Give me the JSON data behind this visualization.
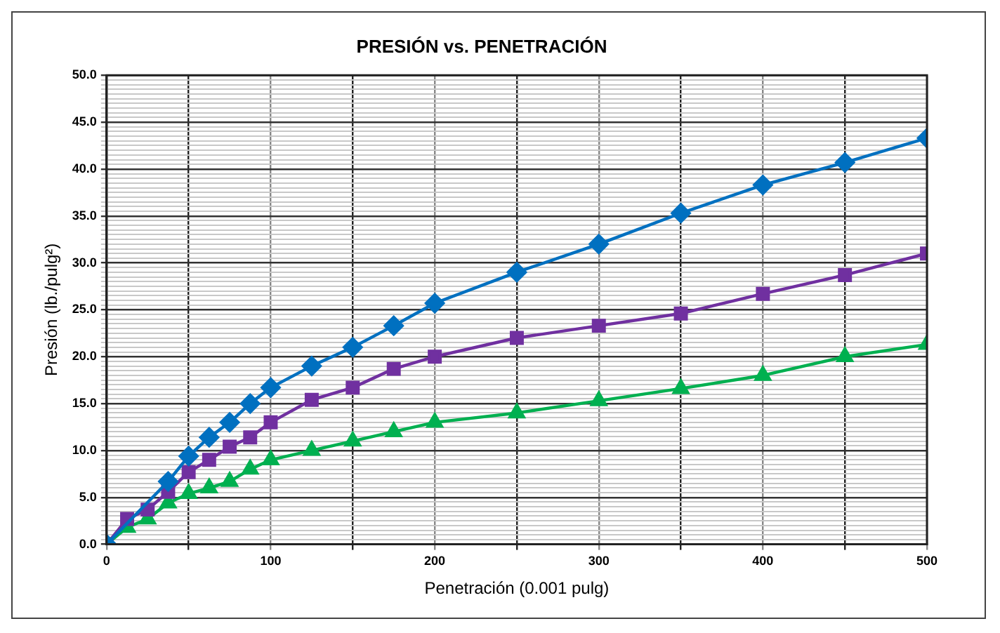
{
  "chart_data": {
    "type": "line",
    "title": "PRESIÓN vs. PENETRACIÓN",
    "xlabel": "Penetración (0.001 pulg)",
    "ylabel": "Presión (lb./pulg²)",
    "x": [
      0,
      12.5,
      25,
      37.5,
      50,
      62.5,
      75,
      87.5,
      100,
      125,
      150,
      175,
      200,
      250,
      300,
      350,
      400,
      450,
      500
    ],
    "series": [
      {
        "color": "#0070c0",
        "marker": "diamond",
        "values": [
          0,
          null,
          null,
          6.7,
          9.4,
          11.4,
          13.0,
          15.0,
          16.7,
          19.0,
          21.0,
          23.3,
          25.7,
          29.0,
          32.0,
          35.3,
          38.3,
          40.7,
          43.3
        ]
      },
      {
        "color": "#7030a0",
        "marker": "square",
        "values": [
          0,
          2.7,
          3.7,
          5.6,
          7.7,
          9.0,
          10.4,
          11.4,
          13.0,
          15.4,
          16.7,
          18.7,
          20.0,
          22.0,
          23.3,
          24.6,
          26.7,
          28.7,
          31.0
        ]
      },
      {
        "color": "#00b050",
        "marker": "triangle",
        "values": [
          0,
          1.8,
          2.7,
          4.4,
          5.4,
          6.0,
          6.7,
          8.0,
          9.0,
          10.0,
          11.0,
          12.0,
          13.0,
          14.0,
          15.3,
          16.6,
          18.0,
          20.0,
          21.3
        ]
      }
    ],
    "line_style": "solid",
    "legend": false,
    "grid": true,
    "xlim": [
      0,
      500
    ],
    "xticks": [
      0,
      {
        "value": 50,
        "label": null
      },
      100,
      {
        "value": 150,
        "label": null
      },
      200,
      {
        "value": 250,
        "label": null
      },
      300,
      {
        "value": 350,
        "label": null
      },
      400,
      {
        "value": 450,
        "label": null
      },
      500
    ],
    "ylim": [
      0,
      50
    ],
    "yticks": [
      {
        "value": 0,
        "label": "0.0"
      },
      {
        "value": 0.5,
        "label": null
      },
      {
        "value": 1,
        "label": null
      },
      {
        "value": 1.5,
        "label": null
      },
      {
        "value": 2,
        "label": null
      },
      {
        "value": 2.5,
        "label": null
      },
      {
        "value": 3,
        "label": null
      },
      {
        "value": 3.5,
        "label": null
      },
      {
        "value": 4,
        "label": null
      },
      {
        "value": 4.5,
        "label": null
      },
      {
        "value": 5,
        "label": "5.0"
      },
      {
        "value": 5.5,
        "label": null
      },
      {
        "value": 6,
        "label": null
      },
      {
        "value": 6.5,
        "label": null
      },
      {
        "value": 7,
        "label": null
      },
      {
        "value": 7.5,
        "label": null
      },
      {
        "value": 8,
        "label": null
      },
      {
        "value": 8.5,
        "label": null
      },
      {
        "value": 9,
        "label": null
      },
      {
        "value": 9.5,
        "label": null
      },
      {
        "value": 10,
        "label": "10.0"
      },
      {
        "value": 10.5,
        "label": null
      },
      {
        "value": 11,
        "label": null
      },
      {
        "value": 11.5,
        "label": null
      },
      {
        "value": 12,
        "label": null
      },
      {
        "value": 12.5,
        "label": null
      },
      {
        "value": 13,
        "label": null
      },
      {
        "value": 13.5,
        "label": null
      },
      {
        "value": 14,
        "label": null
      },
      {
        "value": 14.5,
        "label": null
      },
      {
        "value": 15,
        "label": "15.0"
      },
      {
        "value": 15.5,
        "label": null
      },
      {
        "value": 16,
        "label": null
      },
      {
        "value": 16.5,
        "label": null
      },
      {
        "value": 17,
        "label": null
      },
      {
        "value": 17.5,
        "label": null
      },
      {
        "value": 18,
        "label": null
      },
      {
        "value": 18.5,
        "label": null
      },
      {
        "value": 19,
        "label": null
      },
      {
        "value": 19.5,
        "label": null
      },
      {
        "value": 20,
        "label": "20.0"
      },
      {
        "value": 20.5,
        "label": null
      },
      {
        "value": 21,
        "label": null
      },
      {
        "value": 21.5,
        "label": null
      },
      {
        "value": 22,
        "label": null
      },
      {
        "value": 22.5,
        "label": null
      },
      {
        "value": 23,
        "label": null
      },
      {
        "value": 23.5,
        "label": null
      },
      {
        "value": 24,
        "label": null
      },
      {
        "value": 24.5,
        "label": null
      },
      {
        "value": 25,
        "label": "25.0"
      },
      {
        "value": 25.5,
        "label": null
      },
      {
        "value": 26,
        "label": null
      },
      {
        "value": 26.5,
        "label": null
      },
      {
        "value": 27,
        "label": null
      },
      {
        "value": 27.5,
        "label": null
      },
      {
        "value": 28,
        "label": null
      },
      {
        "value": 28.5,
        "label": null
      },
      {
        "value": 29,
        "label": null
      },
      {
        "value": 29.5,
        "label": null
      },
      {
        "value": 30,
        "label": "30.0"
      },
      {
        "value": 30.5,
        "label": null
      },
      {
        "value": 31,
        "label": null
      },
      {
        "value": 31.5,
        "label": null
      },
      {
        "value": 32,
        "label": null
      },
      {
        "value": 32.5,
        "label": null
      },
      {
        "value": 33,
        "label": null
      },
      {
        "value": 33.5,
        "label": null
      },
      {
        "value": 34,
        "label": null
      },
      {
        "value": 34.5,
        "label": null
      },
      {
        "value": 35,
        "label": "35.0"
      },
      {
        "value": 35.5,
        "label": null
      },
      {
        "value": 36,
        "label": null
      },
      {
        "value": 36.5,
        "label": null
      },
      {
        "value": 37,
        "label": null
      },
      {
        "value": 37.5,
        "label": null
      },
      {
        "value": 38,
        "label": null
      },
      {
        "value": 38.5,
        "label": null
      },
      {
        "value": 39,
        "label": null
      },
      {
        "value": 39.5,
        "label": null
      },
      {
        "value": 40,
        "label": "40.0"
      },
      {
        "value": 40.5,
        "label": null
      },
      {
        "value": 41,
        "label": null
      },
      {
        "value": 41.5,
        "label": null
      },
      {
        "value": 42,
        "label": null
      },
      {
        "value": 42.5,
        "label": null
      },
      {
        "value": 43,
        "label": null
      },
      {
        "value": 43.5,
        "label": null
      },
      {
        "value": 44,
        "label": null
      },
      {
        "value": 44.5,
        "label": null
      },
      {
        "value": 45,
        "label": "45.0"
      },
      {
        "value": 45.5,
        "label": null
      },
      {
        "value": 46,
        "label": null
      },
      {
        "value": 46.5,
        "label": null
      },
      {
        "value": 47,
        "label": null
      },
      {
        "value": 47.5,
        "label": null
      },
      {
        "value": 48,
        "label": null
      },
      {
        "value": 48.5,
        "label": null
      },
      {
        "value": 49,
        "label": null
      },
      {
        "value": 49.5,
        "label": null
      },
      {
        "value": 50,
        "label": "50.0"
      }
    ]
  }
}
